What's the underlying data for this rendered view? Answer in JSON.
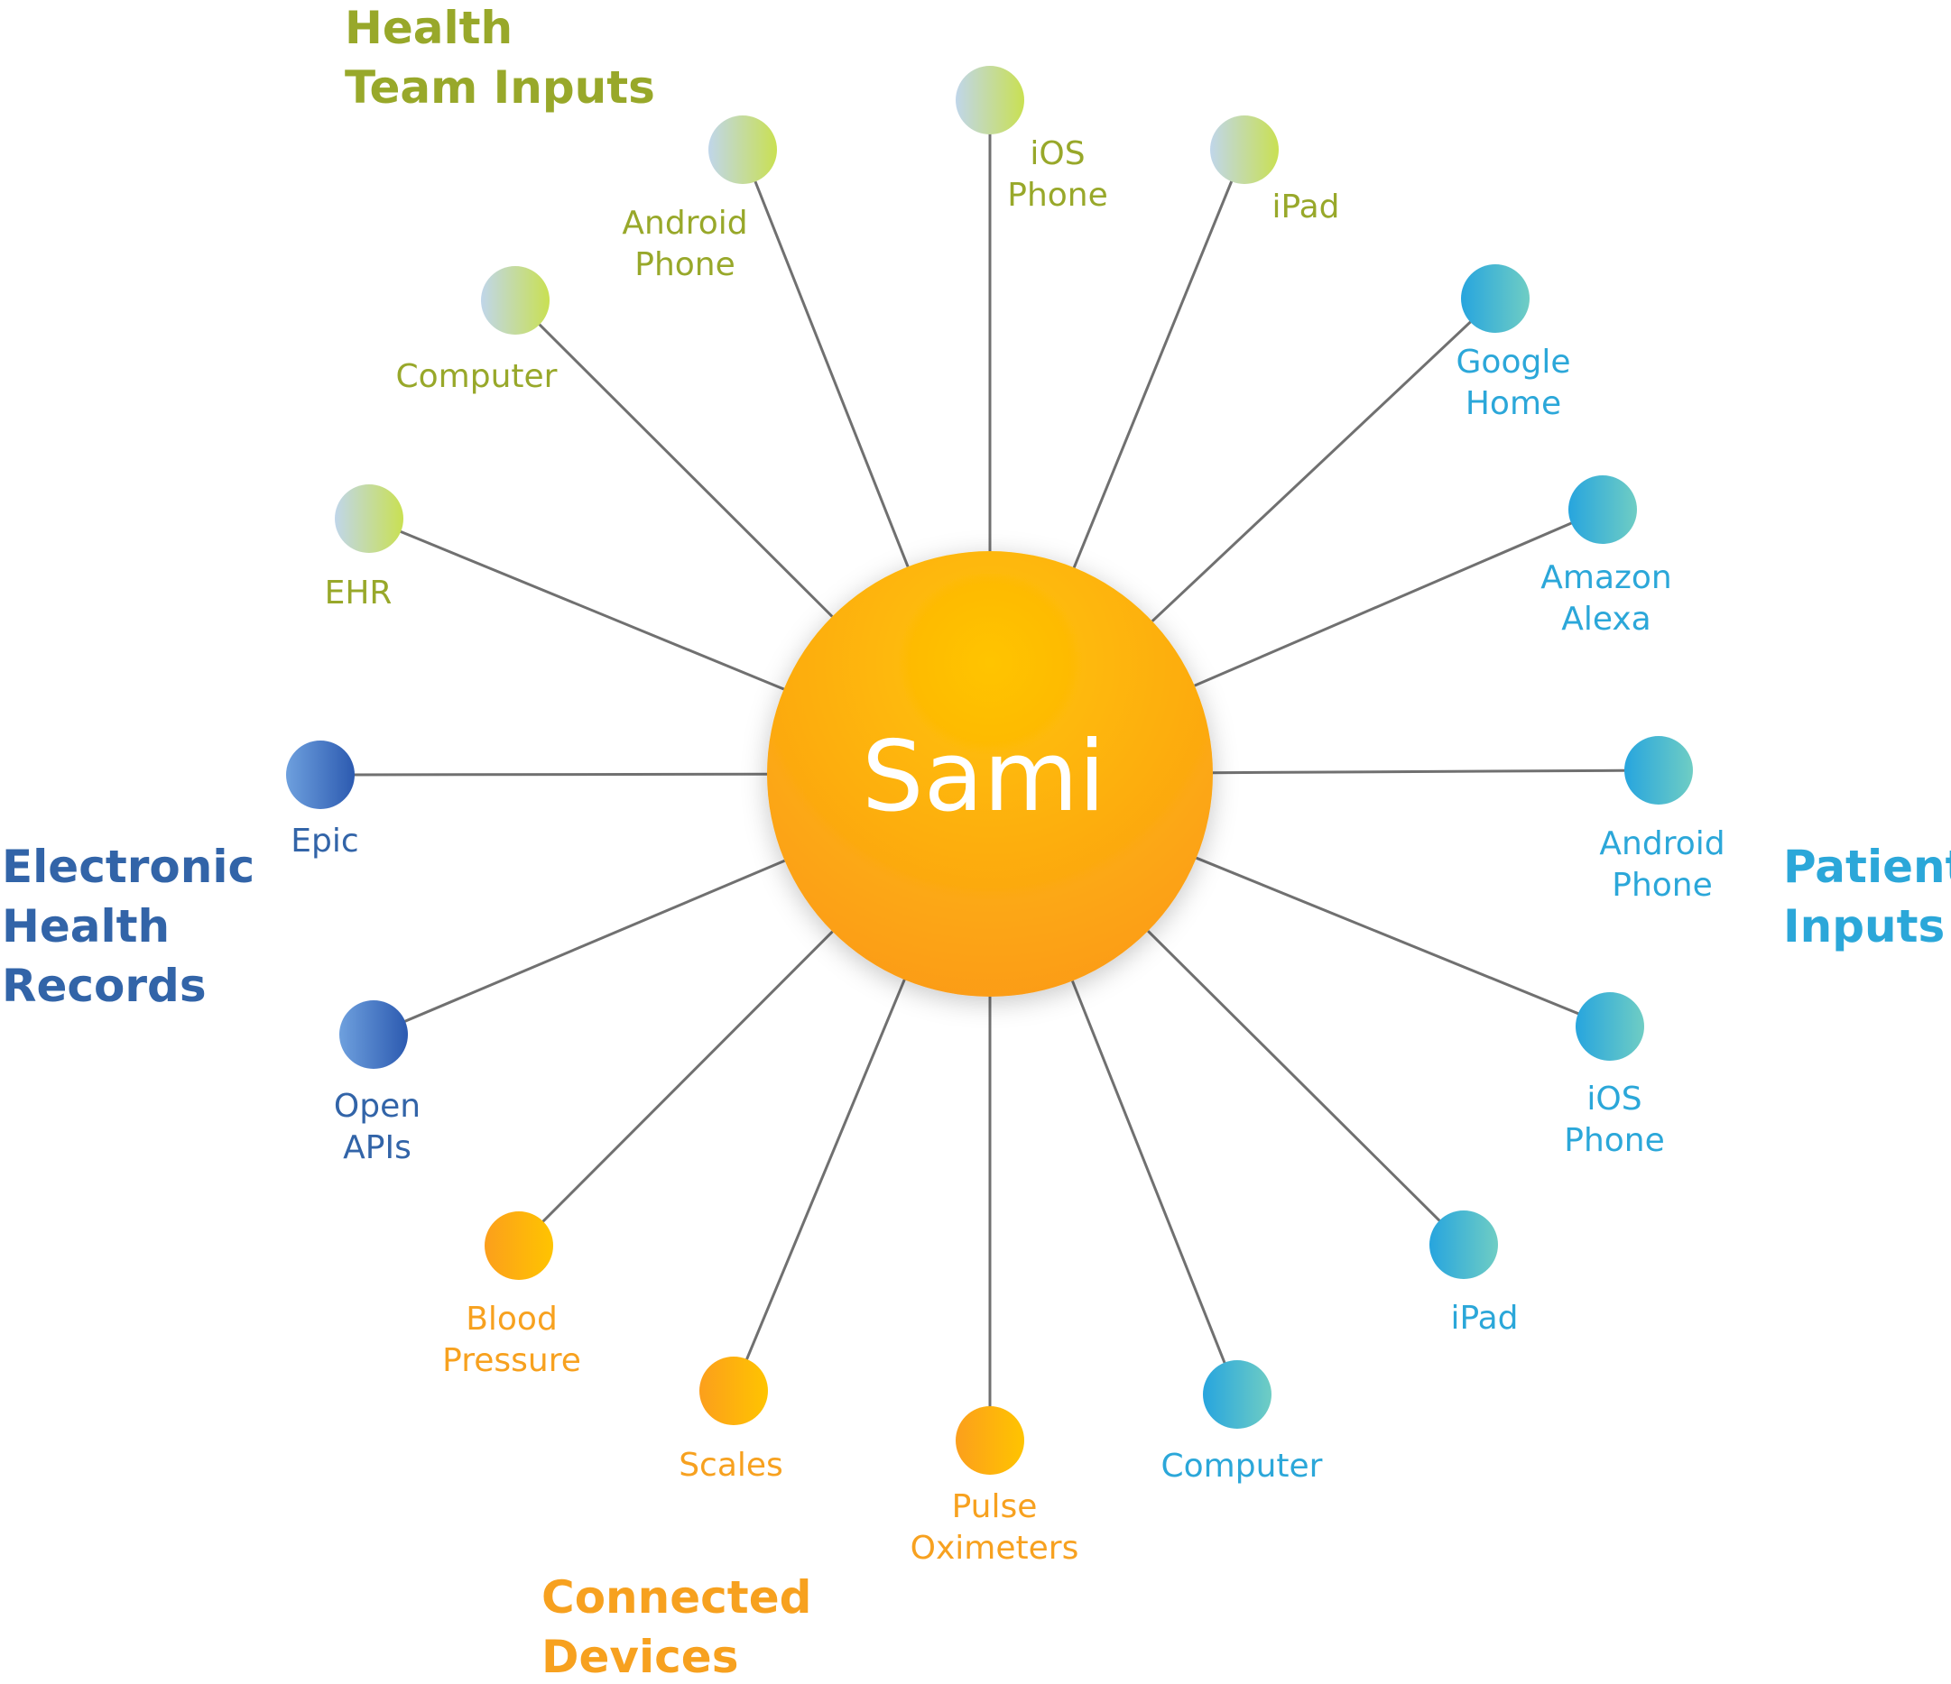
{
  "hub": {
    "label": "Sami"
  },
  "groups": [
    {
      "id": "health-team",
      "label_lines": [
        "Health",
        "Team Inputs"
      ],
      "color": "#98a82a"
    },
    {
      "id": "patient",
      "label_lines": [
        "Patient",
        "Inputs"
      ],
      "color": "#2ba7d9"
    },
    {
      "id": "ehr",
      "label_lines": [
        "Electronic",
        "Health",
        "Records"
      ],
      "color": "#3264a8"
    },
    {
      "id": "devices",
      "label_lines": [
        "Connected",
        "Devices"
      ],
      "color": "#f7a11f"
    }
  ],
  "nodes": [
    {
      "group": "health-team",
      "label_lines": [
        "iOS",
        "Phone"
      ]
    },
    {
      "group": "health-team",
      "label_lines": [
        "iPad"
      ]
    },
    {
      "group": "patient",
      "label_lines": [
        "Google",
        "Home"
      ]
    },
    {
      "group": "patient",
      "label_lines": [
        "Amazon",
        "Alexa"
      ]
    },
    {
      "group": "patient",
      "label_lines": [
        "Android",
        "Phone"
      ]
    },
    {
      "group": "patient",
      "label_lines": [
        "iOS",
        "Phone"
      ]
    },
    {
      "group": "patient",
      "label_lines": [
        "iPad"
      ]
    },
    {
      "group": "patient",
      "label_lines": [
        "Computer"
      ]
    },
    {
      "group": "devices",
      "label_lines": [
        "Pulse",
        "Oximeters"
      ]
    },
    {
      "group": "devices",
      "label_lines": [
        "Scales"
      ]
    },
    {
      "group": "devices",
      "label_lines": [
        "Blood",
        "Pressure"
      ]
    },
    {
      "group": "ehr",
      "label_lines": [
        "Open",
        "APIs"
      ]
    },
    {
      "group": "ehr",
      "label_lines": [
        "Epic"
      ]
    },
    {
      "group": "health-team",
      "label_lines": [
        "EHR"
      ]
    },
    {
      "group": "health-team",
      "label_lines": [
        "Computer"
      ]
    },
    {
      "group": "health-team",
      "label_lines": [
        "Android",
        "Phone"
      ]
    }
  ]
}
